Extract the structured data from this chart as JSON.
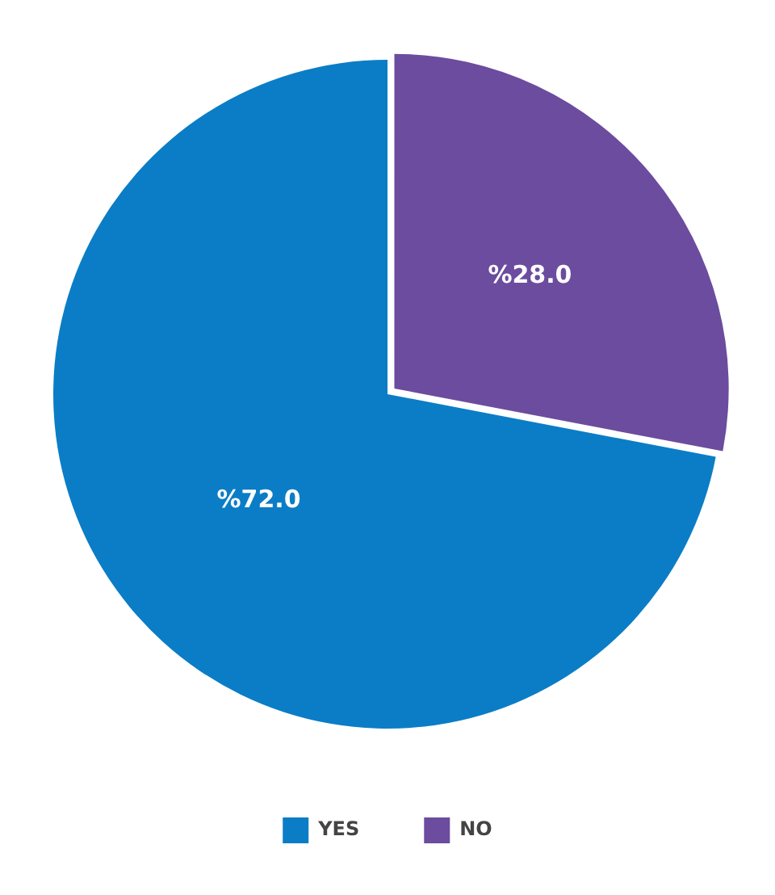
{
  "chart_data": {
    "type": "pie",
    "categories": [
      "YES",
      "NO"
    ],
    "values": [
      72,
      28
    ],
    "colors": [
      "#0b7dc6",
      "#6b4c9e"
    ],
    "value_labels": [
      "%72.0",
      "%28.0"
    ],
    "legend": "bottom"
  }
}
